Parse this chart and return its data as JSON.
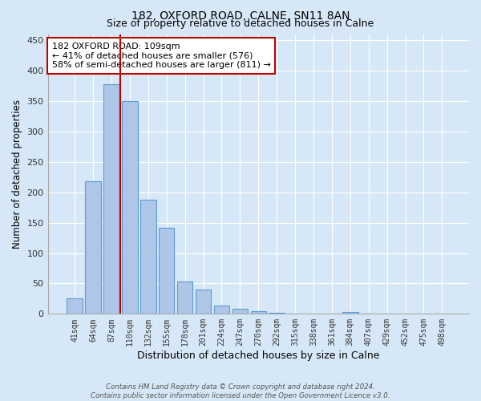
{
  "title": "182, OXFORD ROAD, CALNE, SN11 8AN",
  "subtitle": "Size of property relative to detached houses in Calne",
  "xlabel": "Distribution of detached houses by size in Calne",
  "ylabel": "Number of detached properties",
  "bar_labels": [
    "41sqm",
    "64sqm",
    "87sqm",
    "110sqm",
    "132sqm",
    "155sqm",
    "178sqm",
    "201sqm",
    "224sqm",
    "247sqm",
    "270sqm",
    "292sqm",
    "315sqm",
    "338sqm",
    "361sqm",
    "384sqm",
    "407sqm",
    "429sqm",
    "452sqm",
    "475sqm",
    "498sqm"
  ],
  "bar_values": [
    25,
    218,
    378,
    350,
    188,
    141,
    53,
    40,
    13,
    8,
    5,
    2,
    0,
    0,
    0,
    3,
    0,
    0,
    0,
    0,
    1
  ],
  "bar_color": "#aec6e8",
  "bar_edge_color": "#5b9bd5",
  "vline_x_index": 2.5,
  "vline_color": "#c00000",
  "annotation_text": "182 OXFORD ROAD: 109sqm\n← 41% of detached houses are smaller (576)\n58% of semi-detached houses are larger (811) →",
  "annotation_box_color": "#ffffff",
  "annotation_box_edge_color": "#c00000",
  "footer_text": "Contains HM Land Registry data © Crown copyright and database right 2024.\nContains public sector information licensed under the Open Government Licence v3.0.",
  "bg_color": "#d6e8f7",
  "plot_bg_color": "#d6e8f7",
  "ylim": [
    0,
    460
  ],
  "yticks": [
    0,
    50,
    100,
    150,
    200,
    250,
    300,
    350,
    400,
    450
  ]
}
